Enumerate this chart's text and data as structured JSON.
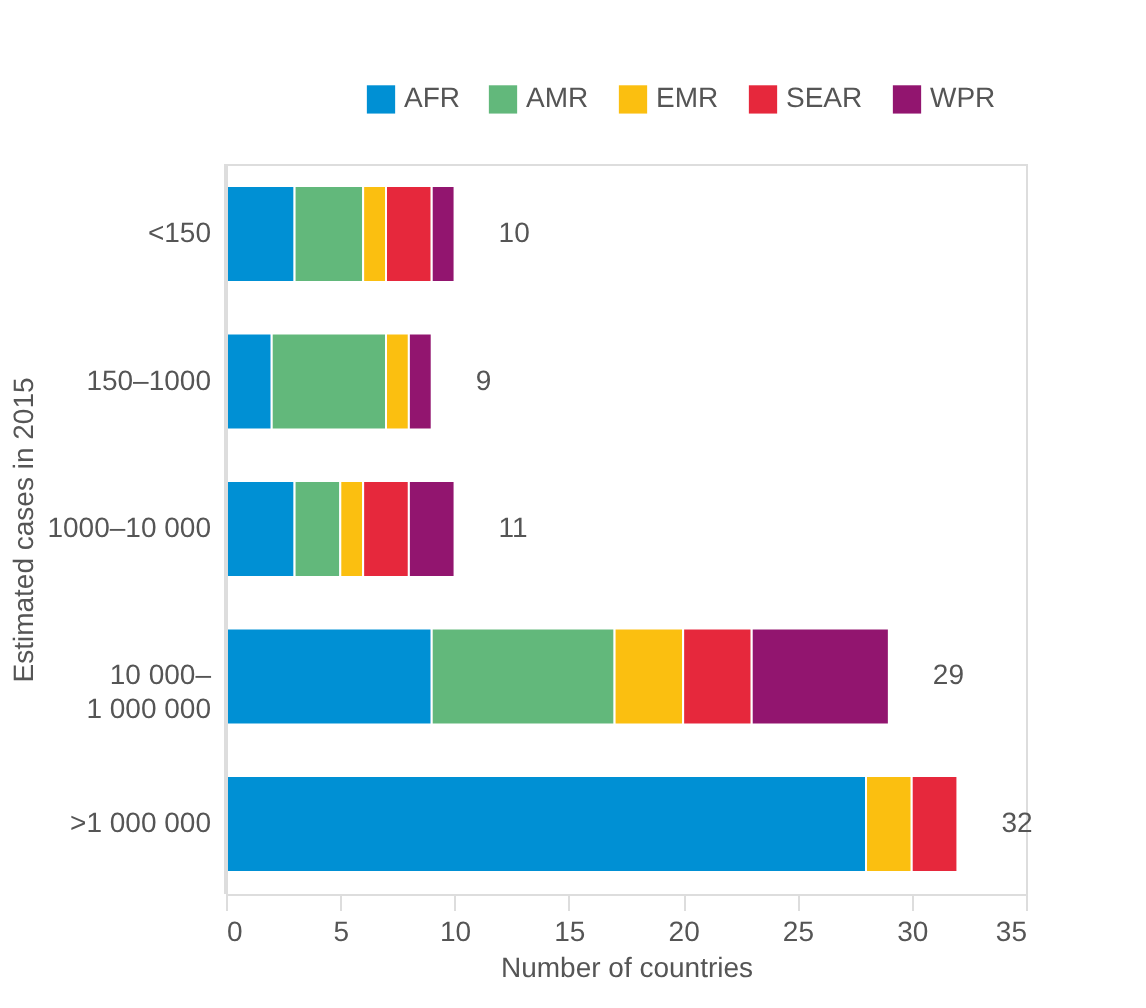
{
  "chart_data": {
    "type": "bar",
    "orientation": "horizontal",
    "stacked": true,
    "ylabel": "Estimated cases in 2015",
    "xlabel": "Number of countries",
    "categories": [
      "<150",
      "150–1000",
      "1000–10 000",
      "10 000–\n1 000 000",
      ">1 000 000"
    ],
    "series": [
      {
        "name": "AFR",
        "color": "#0090d4",
        "values": [
          3,
          2,
          3,
          9,
          28
        ]
      },
      {
        "name": "AMR",
        "color": "#62b87b",
        "values": [
          3,
          5,
          2,
          8,
          0
        ]
      },
      {
        "name": "EMR",
        "color": "#fbbf10",
        "values": [
          1,
          1,
          1,
          3,
          2
        ]
      },
      {
        "name": "SEAR",
        "color": "#e6283c",
        "values": [
          2,
          0,
          2,
          3,
          2
        ]
      },
      {
        "name": "WPR",
        "color": "#92156f",
        "values": [
          1,
          1,
          2,
          6,
          0
        ]
      }
    ],
    "totals": [
      "10",
      "9",
      "11",
      "29",
      "32"
    ],
    "xlim": [
      0,
      35
    ],
    "xticks": [
      0,
      5,
      10,
      15,
      20,
      25,
      30,
      35
    ],
    "grid": false,
    "legend": "top right"
  }
}
